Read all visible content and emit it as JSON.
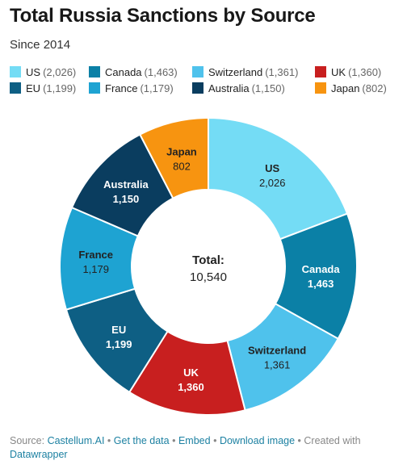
{
  "title": "Total Russia Sanctions by Source",
  "subtitle": "Since 2014",
  "center": {
    "label": "Total:",
    "value": "10,540"
  },
  "chart_data": {
    "type": "pie",
    "title": "Total Russia Sanctions by Source",
    "subtitle": "Since 2014",
    "donut": true,
    "total": 10540,
    "legend_position": "top",
    "series": [
      {
        "name": "US",
        "value": 2026,
        "display": "2,026",
        "color": "#74dcf5",
        "label_color": "#222222"
      },
      {
        "name": "Canada",
        "value": 1463,
        "display": "1,463",
        "color": "#0b80a6",
        "label_color": "#ffffff"
      },
      {
        "name": "Switzerland",
        "value": 1361,
        "display": "1,361",
        "color": "#4fc2ec",
        "label_color": "#222222"
      },
      {
        "name": "UK",
        "value": 1360,
        "display": "1,360",
        "color": "#c81f1f",
        "label_color": "#ffffff"
      },
      {
        "name": "EU",
        "value": 1199,
        "display": "1,199",
        "color": "#0e5f84",
        "label_color": "#ffffff"
      },
      {
        "name": "France",
        "value": 1179,
        "display": "1,179",
        "color": "#1ea3d2",
        "label_color": "#222222"
      },
      {
        "name": "Australia",
        "value": 1150,
        "display": "1,150",
        "color": "#0a3d5f",
        "label_color": "#ffffff"
      },
      {
        "name": "Japan",
        "value": 802,
        "display": "802",
        "color": "#f79410",
        "label_color": "#222222"
      }
    ]
  },
  "legend": {
    "rows": [
      [
        {
          "name": "US",
          "value": "(2,026)",
          "color": "#74dcf5"
        },
        {
          "name": "Canada",
          "value": "(1,463)",
          "color": "#0b80a6"
        },
        {
          "name": "Switzerland",
          "value": "(1,361)",
          "color": "#4fc2ec"
        },
        {
          "name": "UK",
          "value": "(1,360)",
          "color": "#c81f1f"
        }
      ],
      [
        {
          "name": "EU",
          "value": "(1,199)",
          "color": "#0e5f84"
        },
        {
          "name": "France",
          "value": "(1,179)",
          "color": "#1ea3d2"
        },
        {
          "name": "Australia",
          "value": "(1,150)",
          "color": "#0a3d5f"
        },
        {
          "name": "Japan",
          "value": "(802)",
          "color": "#f79410"
        }
      ]
    ]
  },
  "footer": {
    "source_prefix": "Source:",
    "source_link": "Castellum.AI",
    "get_data": "Get the data",
    "embed": "Embed",
    "download": "Download image",
    "created_with": "Created with",
    "tool": "Datawrapper",
    "separator": "•"
  }
}
